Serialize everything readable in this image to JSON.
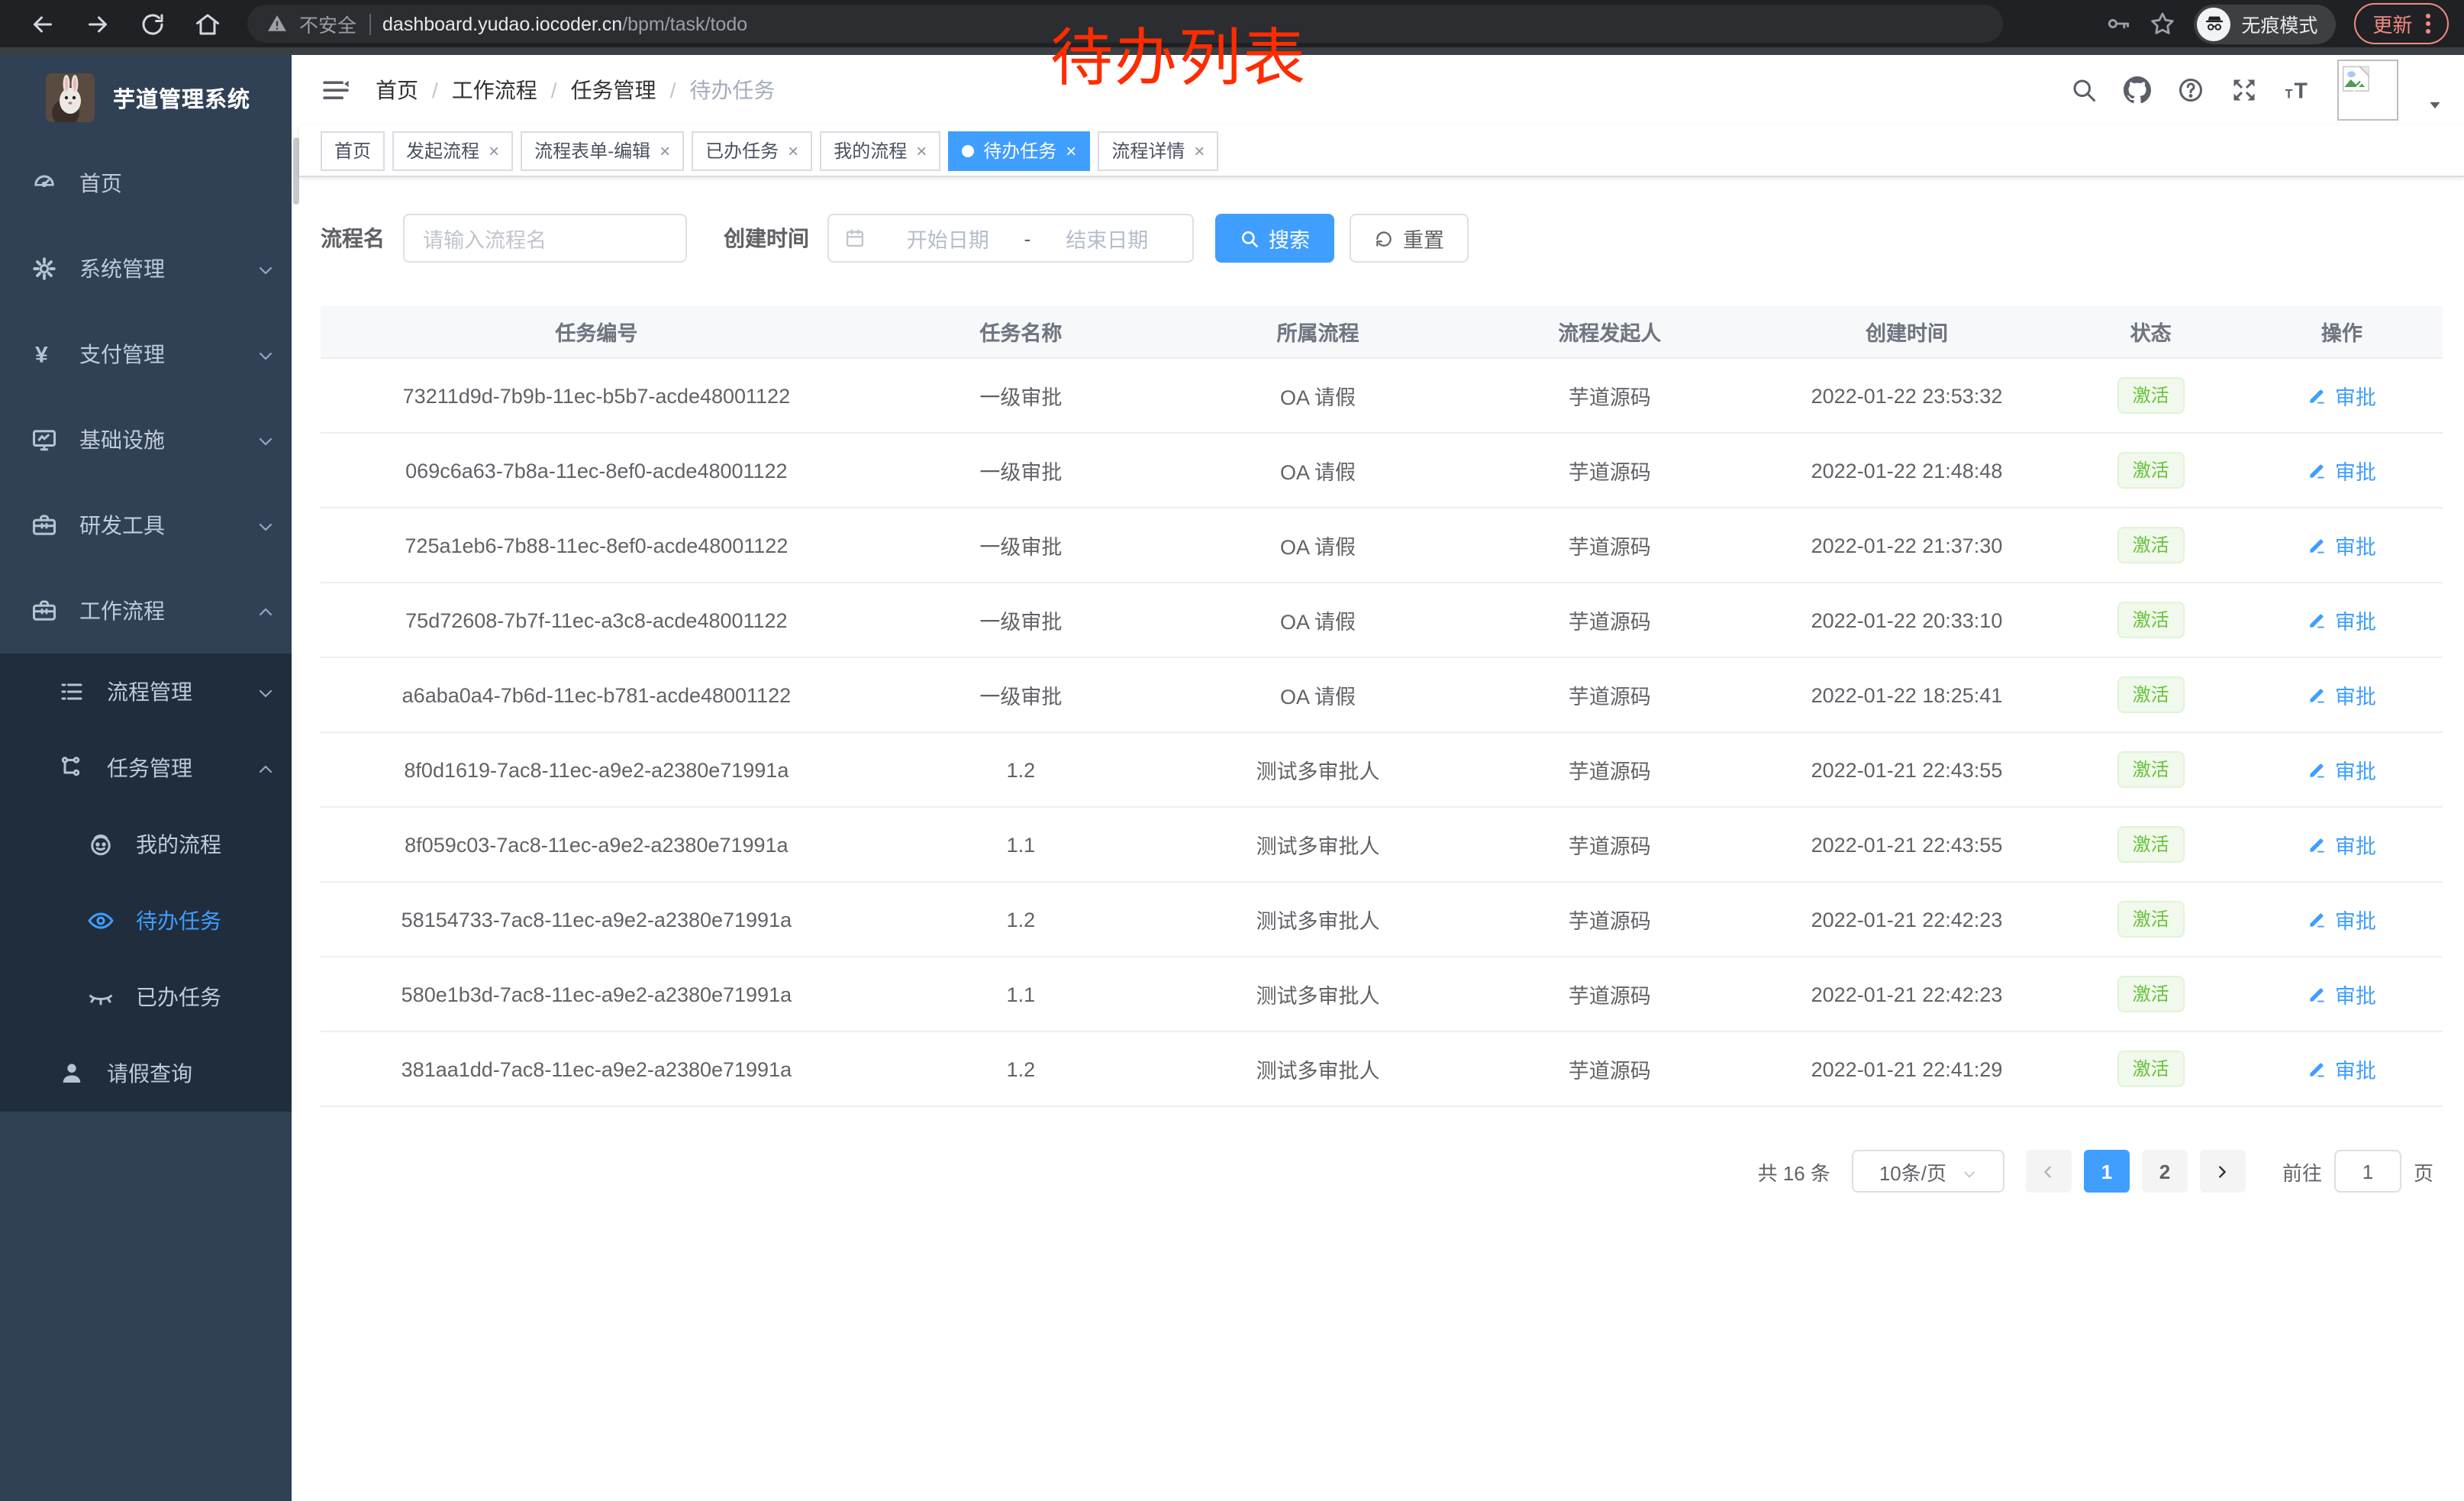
{
  "browser": {
    "security_text": "不安全",
    "url_host": "dashboard.yudao.iocoder.cn",
    "url_path": "/bpm/task/todo",
    "incognito_label": "无痕模式",
    "update_label": "更新"
  },
  "annotation": {
    "text": "待办列表"
  },
  "colors": {
    "accent": "#409eff",
    "sidebar_bg": "#304156",
    "submenu_bg": "#1f2d3d",
    "success_text": "#67c23a",
    "success_bg": "#f0f9eb",
    "annotation_red": "#fe2c00"
  },
  "sidebar": {
    "app_title": "芋道管理系统",
    "menu": [
      {
        "label": "首页",
        "icon": "dashboard",
        "level": 1
      },
      {
        "label": "系统管理",
        "icon": "gear",
        "level": 1,
        "chevron": "down"
      },
      {
        "label": "支付管理",
        "icon": "yen",
        "level": 1,
        "chevron": "down"
      },
      {
        "label": "基础设施",
        "icon": "monitor",
        "level": 1,
        "chevron": "down"
      },
      {
        "label": "研发工具",
        "icon": "toolbox",
        "level": 1,
        "chevron": "down"
      },
      {
        "label": "工作流程",
        "icon": "toolbox",
        "level": 1,
        "chevron": "up"
      }
    ],
    "submenu": [
      {
        "label": "流程管理",
        "icon": "list",
        "level": 2,
        "chevron": "down"
      },
      {
        "label": "任务管理",
        "icon": "tree",
        "level": 2,
        "chevron": "up"
      },
      {
        "label": "我的流程",
        "icon": "robot",
        "level": 3
      },
      {
        "label": "待办任务",
        "icon": "eye",
        "level": 3,
        "active": true
      },
      {
        "label": "已办任务",
        "icon": "eye-closed",
        "level": 3
      },
      {
        "label": "请假查询",
        "icon": "user",
        "level": 2
      }
    ]
  },
  "header": {
    "breadcrumb": [
      "首页",
      "工作流程",
      "任务管理",
      "待办任务"
    ]
  },
  "tabs": [
    {
      "label": "首页",
      "closable": false,
      "active": false
    },
    {
      "label": "发起流程",
      "closable": true,
      "active": false
    },
    {
      "label": "流程表单-编辑",
      "closable": true,
      "active": false
    },
    {
      "label": "已办任务",
      "closable": true,
      "active": false
    },
    {
      "label": "我的流程",
      "closable": true,
      "active": false
    },
    {
      "label": "待办任务",
      "closable": true,
      "active": true
    },
    {
      "label": "流程详情",
      "closable": true,
      "active": false
    }
  ],
  "filters": {
    "name_label": "流程名",
    "name_placeholder": "请输入流程名",
    "time_label": "创建时间",
    "start_placeholder": "开始日期",
    "range_separator": "-",
    "end_placeholder": "结束日期",
    "search_label": "搜索",
    "reset_label": "重置"
  },
  "table": {
    "columns": [
      "任务编号",
      "任务名称",
      "所属流程",
      "流程发起人",
      "创建时间",
      "状态",
      "操作"
    ],
    "action_label": "审批",
    "rows": [
      {
        "id": "73211d9d-7b9b-11ec-b5b7-acde48001122",
        "name": "一级审批",
        "process": "OA 请假",
        "starter": "芋道源码",
        "created": "2022-01-22 23:53:32",
        "status": "激活"
      },
      {
        "id": "069c6a63-7b8a-11ec-8ef0-acde48001122",
        "name": "一级审批",
        "process": "OA 请假",
        "starter": "芋道源码",
        "created": "2022-01-22 21:48:48",
        "status": "激活"
      },
      {
        "id": "725a1eb6-7b88-11ec-8ef0-acde48001122",
        "name": "一级审批",
        "process": "OA 请假",
        "starter": "芋道源码",
        "created": "2022-01-22 21:37:30",
        "status": "激活"
      },
      {
        "id": "75d72608-7b7f-11ec-a3c8-acde48001122",
        "name": "一级审批",
        "process": "OA 请假",
        "starter": "芋道源码",
        "created": "2022-01-22 20:33:10",
        "status": "激活"
      },
      {
        "id": "a6aba0a4-7b6d-11ec-b781-acde48001122",
        "name": "一级审批",
        "process": "OA 请假",
        "starter": "芋道源码",
        "created": "2022-01-22 18:25:41",
        "status": "激活"
      },
      {
        "id": "8f0d1619-7ac8-11ec-a9e2-a2380e71991a",
        "name": "1.2",
        "process": "测试多审批人",
        "starter": "芋道源码",
        "created": "2022-01-21 22:43:55",
        "status": "激活"
      },
      {
        "id": "8f059c03-7ac8-11ec-a9e2-a2380e71991a",
        "name": "1.1",
        "process": "测试多审批人",
        "starter": "芋道源码",
        "created": "2022-01-21 22:43:55",
        "status": "激活"
      },
      {
        "id": "58154733-7ac8-11ec-a9e2-a2380e71991a",
        "name": "1.2",
        "process": "测试多审批人",
        "starter": "芋道源码",
        "created": "2022-01-21 22:42:23",
        "status": "激活"
      },
      {
        "id": "580e1b3d-7ac8-11ec-a9e2-a2380e71991a",
        "name": "1.1",
        "process": "测试多审批人",
        "starter": "芋道源码",
        "created": "2022-01-21 22:42:23",
        "status": "激活"
      },
      {
        "id": "381aa1dd-7ac8-11ec-a9e2-a2380e71991a",
        "name": "1.2",
        "process": "测试多审批人",
        "starter": "芋道源码",
        "created": "2022-01-21 22:41:29",
        "status": "激活"
      }
    ]
  },
  "pagination": {
    "total_label": "共 16 条",
    "page_size_label": "10条/页",
    "pages": [
      "1",
      "2"
    ],
    "active_page": "1",
    "goto_label": "前往",
    "goto_value": "1",
    "goto_suffix": "页"
  }
}
